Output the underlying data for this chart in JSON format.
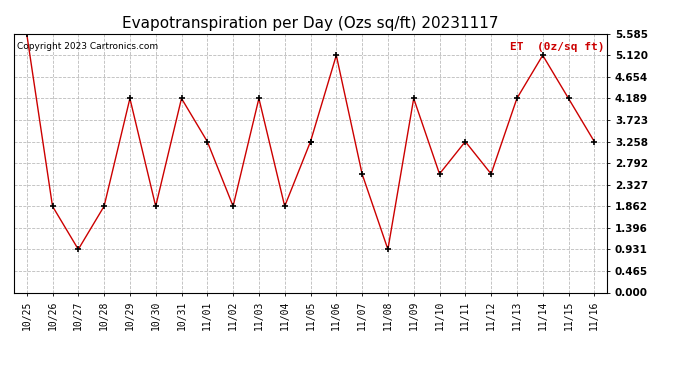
{
  "title": "Evapotranspiration per Day (Ozs sq/ft) 20231117",
  "legend_label": "ET  (0z/sq ft)",
  "copyright": "Copyright 2023 Cartronics.com",
  "x_tick_labels": [
    "10/25",
    "10/26",
    "10/27",
    "10/28",
    "10/29",
    "10/30",
    "10/31",
    "11/01",
    "11/02",
    "11/03",
    "11/04",
    "11/05",
    "11/06",
    "11/07",
    "11/08",
    "11/09",
    "11/10",
    "11/11",
    "11/12",
    "11/13",
    "11/14",
    "11/15",
    "11/16"
  ],
  "y_values": [
    5.585,
    1.862,
    0.931,
    1.862,
    4.189,
    1.862,
    4.189,
    3.258,
    1.862,
    4.189,
    1.862,
    3.258,
    3.258,
    5.12,
    2.56,
    0.931,
    4.189,
    2.56,
    3.258,
    2.56,
    4.189,
    5.12,
    4.189,
    3.258
  ],
  "x_indices": [
    0,
    1,
    2,
    3,
    4,
    5,
    6,
    7,
    8,
    9,
    10,
    11,
    11,
    12,
    13,
    14,
    15,
    16,
    17,
    18,
    19,
    20,
    21,
    22
  ],
  "y_ticks": [
    0.0,
    0.465,
    0.931,
    1.396,
    1.862,
    2.327,
    2.792,
    3.258,
    3.723,
    4.189,
    4.654,
    5.12,
    5.585
  ],
  "line_color": "#cc0000",
  "marker_color": "#000000",
  "grid_color": "#bbbbbb",
  "bg_color": "#ffffff",
  "title_fontsize": 11,
  "legend_color": "#cc0000",
  "copyright_color": "#000000",
  "copyright_fontsize": 6.5,
  "border_color": "#000000"
}
